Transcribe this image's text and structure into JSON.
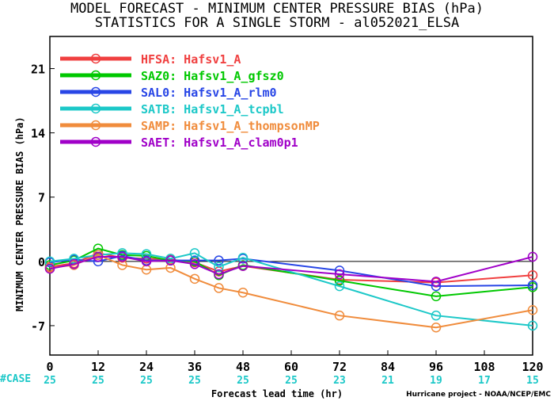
{
  "title_line1": "MODEL FORECAST - MINIMUM CENTER PRESSURE BIAS (hPa)",
  "title_line2": "STATISTICS FOR A SINGLE STORM - al052021_ELSA",
  "case_label": "#CASE",
  "credit": "Hurricane project - NOAA/NCEP/EMC",
  "chart_data": {
    "type": "line",
    "xlabel": "Forecast lead time (hr)",
    "ylabel": "MINIMUM CENTER PRESSURE BIAS (hPa)",
    "xlim": [
      0,
      120
    ],
    "ylim": [
      -10.2,
      24.5
    ],
    "xticks": [
      0,
      12,
      24,
      36,
      48,
      60,
      72,
      84,
      96,
      108,
      120
    ],
    "yticks": [
      -7,
      0,
      7,
      14,
      21
    ],
    "cases": [
      25,
      25,
      25,
      25,
      25,
      25,
      23,
      21,
      19,
      17,
      15
    ],
    "case_x": [
      0,
      12,
      24,
      36,
      48,
      60,
      72,
      84,
      96,
      108,
      120
    ],
    "x": [
      0,
      6,
      12,
      18,
      24,
      30,
      36,
      42,
      48,
      72,
      96,
      120
    ],
    "legend_position": "top-left",
    "series": [
      {
        "name": "HFSA: Hafsv1_A",
        "color": "#f04040",
        "values": [
          -0.6,
          -0.2,
          0.9,
          0.4,
          0.3,
          0.2,
          -0.1,
          -1.1,
          -0.5,
          -2.0,
          -2.3,
          -1.5
        ]
      },
      {
        "name": "SAZ0: Hafsv1_A_gfsz0",
        "color": "#00c800",
        "values": [
          -0.4,
          0.1,
          1.4,
          0.7,
          0.6,
          0.1,
          0.0,
          -1.5,
          -0.4,
          -2.1,
          -3.8,
          -2.8
        ]
      },
      {
        "name": "SAL0: Hafsv1_A_rlm0",
        "color": "#2846e6",
        "values": [
          -0.1,
          0.2,
          0.0,
          0.6,
          0.1,
          0.1,
          0.1,
          0.1,
          0.3,
          -1.0,
          -2.7,
          -2.6
        ]
      },
      {
        "name": "SATB: Hafsv1_A_tcpbl",
        "color": "#1cc8c8",
        "values": [
          0.0,
          0.3,
          0.7,
          0.9,
          0.8,
          0.3,
          0.9,
          -0.6,
          0.4,
          -2.7,
          -5.9,
          -7.0
        ]
      },
      {
        "name": "SAMP: Hafsv1_A_thompsonMP",
        "color": "#f08c3c",
        "values": [
          -0.7,
          -0.4,
          0.7,
          -0.4,
          -0.9,
          -0.7,
          -1.9,
          -2.9,
          -3.4,
          -5.9,
          -7.2,
          -5.3
        ]
      },
      {
        "name": "SAET: Hafsv1_A_clam0p1",
        "color": "#a000c8",
        "values": [
          -0.8,
          -0.3,
          0.5,
          0.5,
          0.0,
          0.1,
          -0.3,
          -1.4,
          -0.5,
          -1.4,
          -2.2,
          0.5
        ]
      }
    ]
  }
}
